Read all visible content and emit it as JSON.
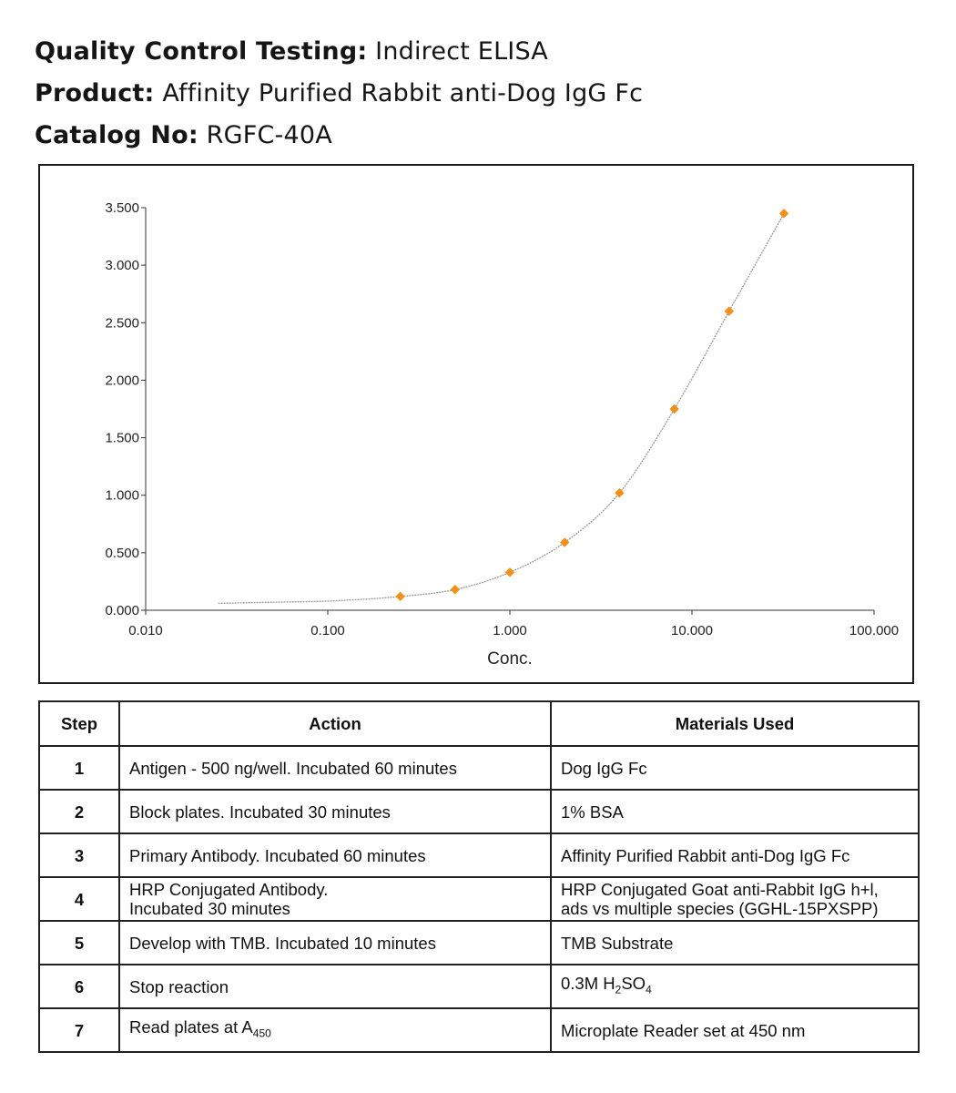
{
  "header": {
    "qc_label": "Quality Control Testing:",
    "qc_value": "Indirect ELISA",
    "product_label": "Product:",
    "product_value": "Affinity Purified Rabbit anti-Dog IgG Fc",
    "catalog_label": "Catalog No:",
    "catalog_value": "RGFC-40A"
  },
  "chart_data": {
    "type": "scatter",
    "xscale": "log",
    "xlabel": "Conc.",
    "ylabel": "",
    "xlim": [
      0.01,
      100
    ],
    "ylim": [
      0,
      3.5
    ],
    "x_ticks": [
      "0.010",
      "0.100",
      "1.000",
      "10.000",
      "100.000"
    ],
    "y_ticks": [
      "0.000",
      "0.500",
      "1.000",
      "1.500",
      "2.000",
      "2.500",
      "3.000",
      "3.500"
    ],
    "points": {
      "x": [
        0.25,
        0.5,
        1.0,
        2.0,
        4.0,
        8.0,
        16.0,
        32.0
      ],
      "y": [
        0.12,
        0.18,
        0.33,
        0.59,
        1.02,
        1.75,
        2.6,
        3.45
      ]
    },
    "fit_curve": {
      "x": [
        0.025,
        0.05,
        0.1,
        0.25,
        0.5,
        1.0,
        2.0,
        4.0,
        8.0,
        16.0,
        32.0
      ],
      "y": [
        0.06,
        0.07,
        0.08,
        0.12,
        0.18,
        0.33,
        0.59,
        1.02,
        1.75,
        2.6,
        3.45
      ]
    },
    "grid": false,
    "point_color": "#f39019",
    "curve_color": "#9a9a9a"
  },
  "table": {
    "headers": [
      "Step",
      "Action",
      "Materials Used"
    ],
    "rows": [
      {
        "step": "1",
        "action": [
          "Antigen - 500 ng/well. Incubated 60 minutes"
        ],
        "materials": [
          "Dog IgG Fc"
        ]
      },
      {
        "step": "2",
        "action": [
          "Block plates. Incubated 30 minutes"
        ],
        "materials": [
          "1% BSA"
        ]
      },
      {
        "step": "3",
        "action": [
          "Primary Antibody.  Incubated 60 minutes"
        ],
        "materials": [
          "Affinity Purified Rabbit anti-Dog IgG Fc"
        ]
      },
      {
        "step": "4",
        "action": [
          "HRP Conjugated Antibody.",
          "Incubated 30 minutes"
        ],
        "materials": [
          "HRP Conjugated Goat anti-Rabbit IgG h+l,",
          "ads vs multiple species (GGHL-15PXSPP)"
        ]
      },
      {
        "step": "5",
        "action": [
          "Develop with TMB.  Incubated 10 minutes"
        ],
        "materials": [
          "TMB Substrate"
        ]
      },
      {
        "step": "6",
        "action": [
          "Stop reaction"
        ],
        "materials": [
          "0.3M H",
          {
            "sub": "2"
          },
          "SO",
          {
            "sub": "4"
          }
        ]
      },
      {
        "step": "7",
        "action": [
          "Read plates at A",
          {
            "sub": "450"
          }
        ],
        "materials": [
          "Microplate Reader set at 450 nm"
        ]
      }
    ]
  }
}
